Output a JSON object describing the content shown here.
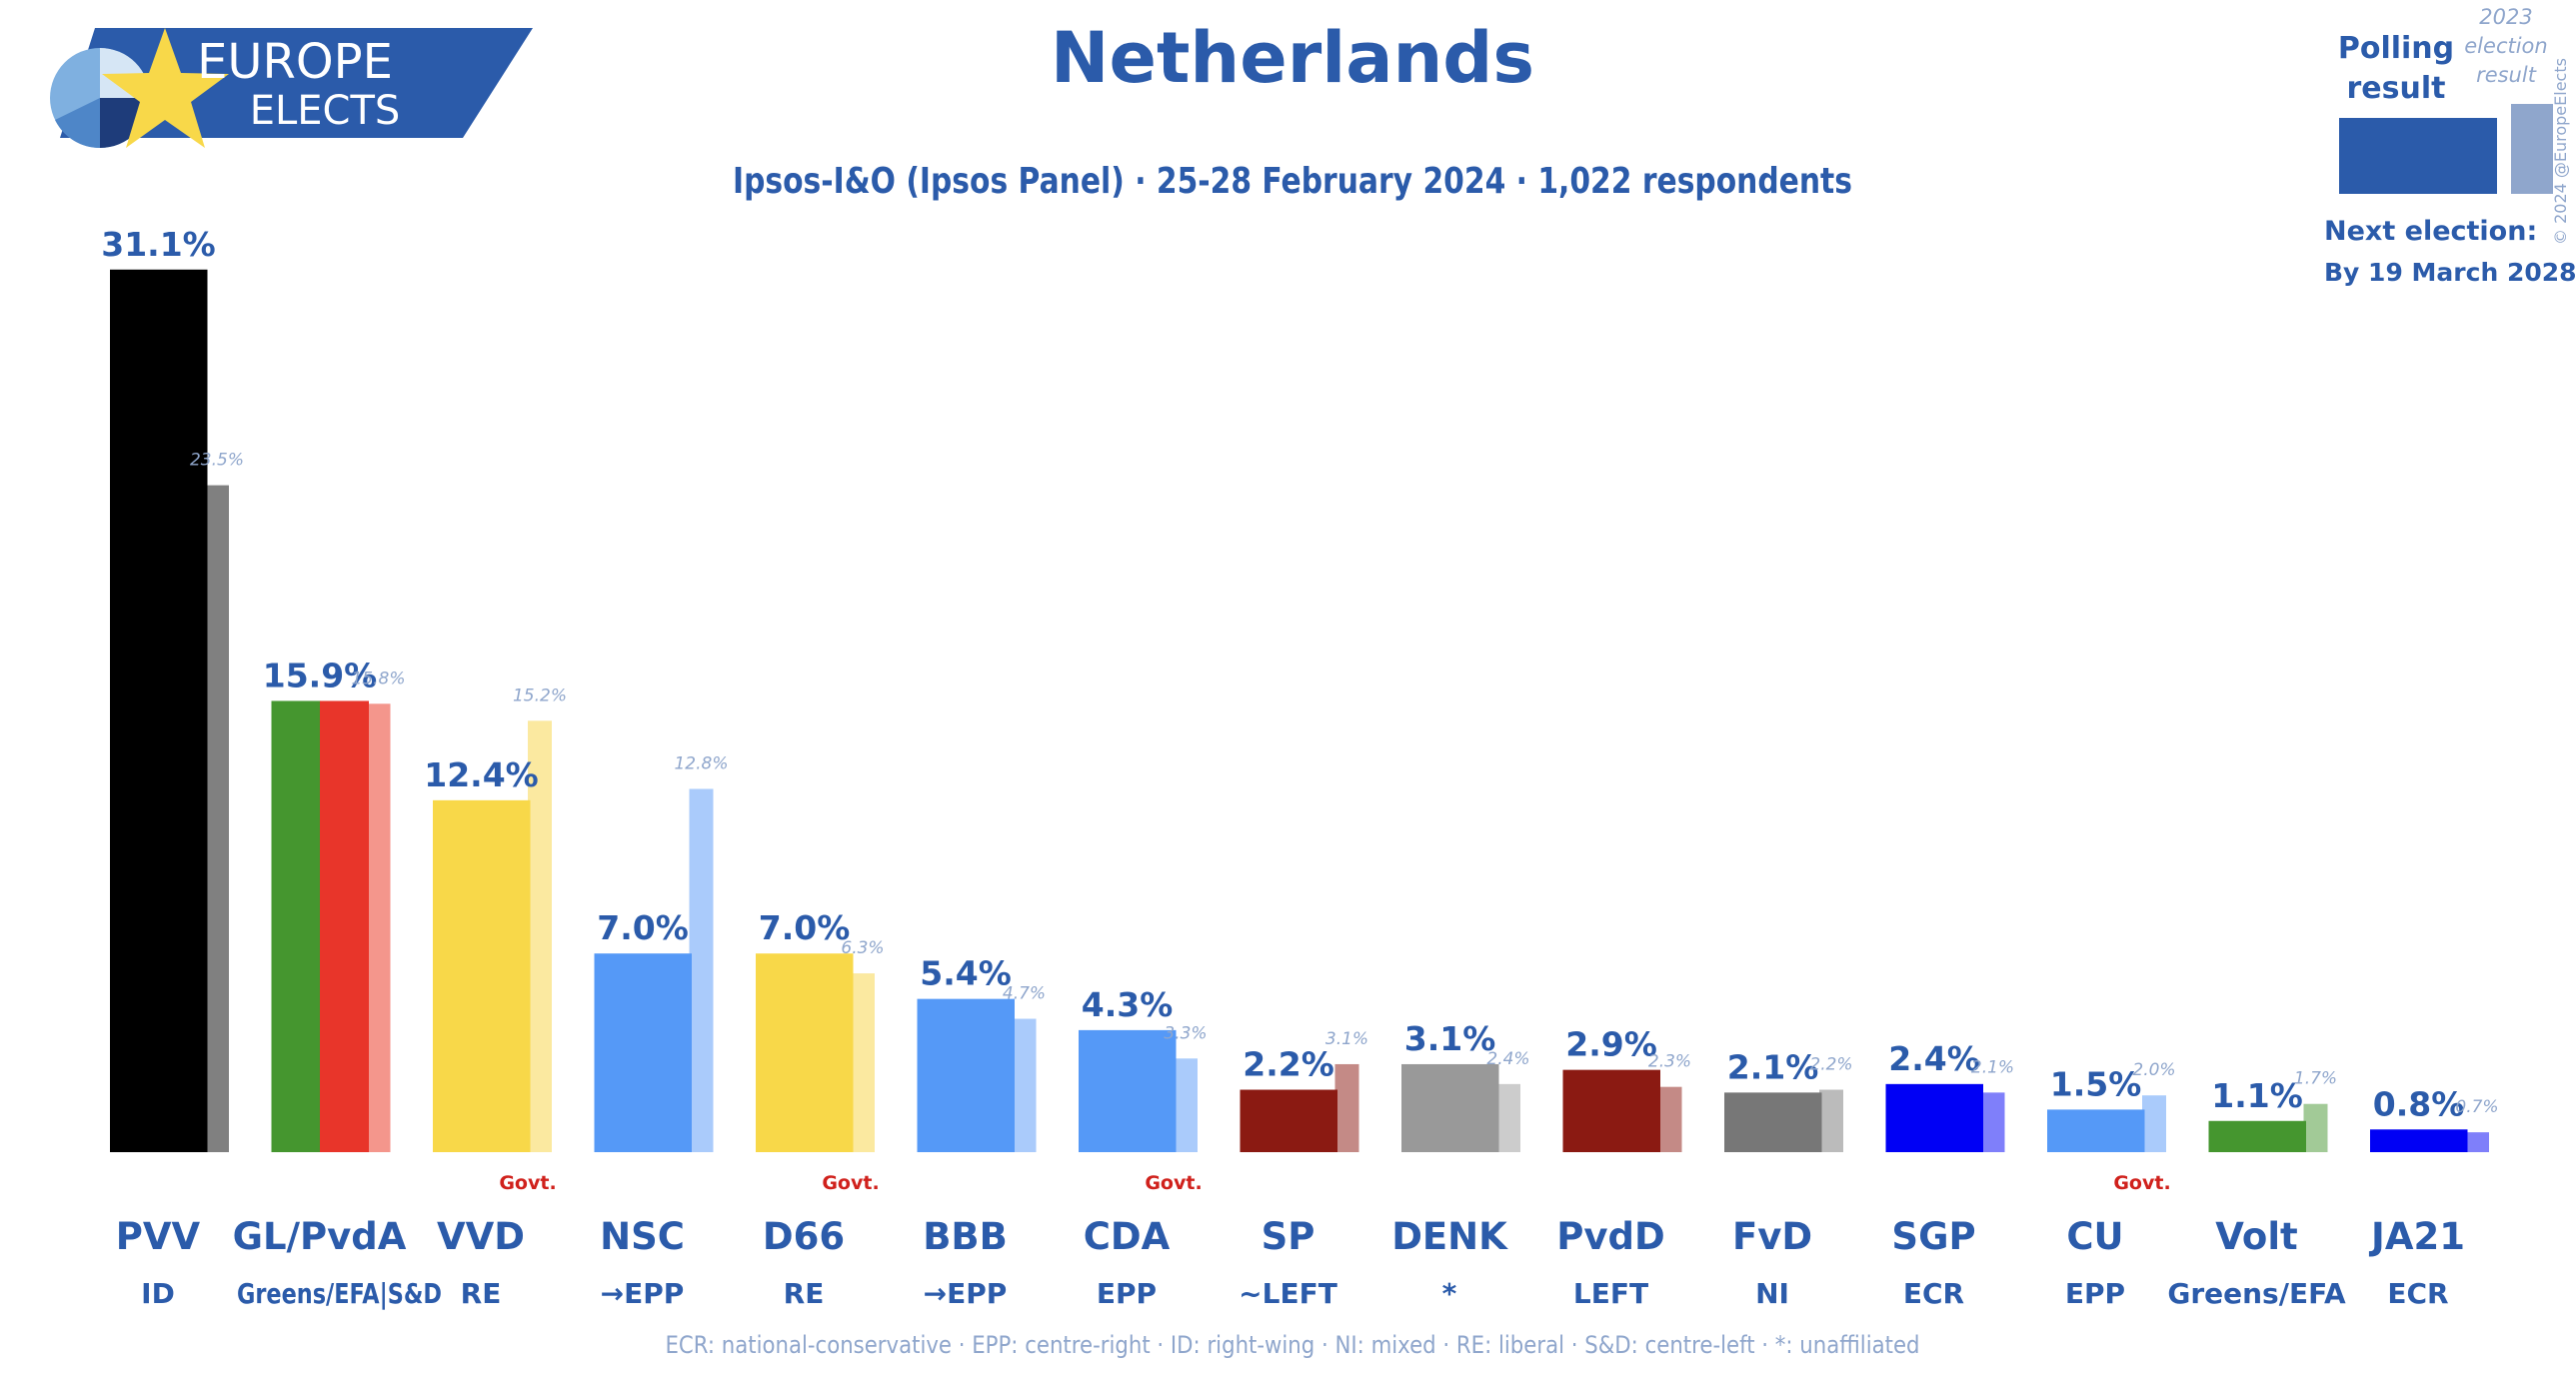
{
  "header": {
    "title": "Netherlands",
    "subtitle": "Ipsos-I&O (Ipsos Panel) · 25-28 February 2024 · 1,022 respondents",
    "logo_line1": "EUROPE",
    "logo_line2": "ELECTS"
  },
  "legend": {
    "polling_label": "Polling result",
    "election_label": "2023 election result",
    "next_election_label": "Next election:",
    "next_election_date": "By 19 March 2028",
    "copyright": "© 2024 @EuropeElects"
  },
  "footnote": "ECR: national-conservative · EPP: centre-right · ID: right-wing · NI: mixed · RE: liberal · S&D: centre-left · *: unaffiliated",
  "govt_label": "Govt.",
  "colors": {
    "title": "#2B5BAA",
    "previous_label": "#8FA6CC",
    "govt": "#D0211C",
    "footnote": "#8FA6CC"
  },
  "chart_data": {
    "type": "bar",
    "ylim": [
      0,
      33
    ],
    "value_suffix": "%",
    "parties": [
      {
        "name": "PVV",
        "group": "ID",
        "value": 31.1,
        "previous": 23.5,
        "colors": [
          "#000000"
        ],
        "prev_color": "#808080",
        "govt": false
      },
      {
        "name": "GL/PvdA",
        "group": "Greens/EFA|S&D",
        "value": 15.9,
        "previous": 15.8,
        "colors": [
          "#45962F",
          "#E8352A"
        ],
        "prev_color": "#F4968C",
        "govt": false
      },
      {
        "name": "VVD",
        "group": "RE",
        "value": 12.4,
        "previous": 15.2,
        "colors": [
          "#F8D849"
        ],
        "prev_color": "#FBE9A0",
        "govt": true
      },
      {
        "name": "NSC",
        "group": "→EPP",
        "value": 7.0,
        "previous": 12.8,
        "colors": [
          "#5599F7"
        ],
        "prev_color": "#AACBFB",
        "govt": false
      },
      {
        "name": "D66",
        "group": "RE",
        "value": 7.0,
        "previous": 6.3,
        "colors": [
          "#F8D849"
        ],
        "prev_color": "#FBE9A0",
        "govt": true
      },
      {
        "name": "BBB",
        "group": "→EPP",
        "value": 5.4,
        "previous": 4.7,
        "colors": [
          "#5599F7"
        ],
        "prev_color": "#AACBFB",
        "govt": false
      },
      {
        "name": "CDA",
        "group": "EPP",
        "value": 4.3,
        "previous": 3.3,
        "colors": [
          "#5599F7"
        ],
        "prev_color": "#AACBFB",
        "govt": true
      },
      {
        "name": "SP",
        "group": "~LEFT",
        "value": 2.2,
        "previous": 3.1,
        "colors": [
          "#8B1A12"
        ],
        "prev_color": "#C48A86",
        "govt": false
      },
      {
        "name": "DENK",
        "group": "*",
        "value": 3.1,
        "previous": 2.4,
        "colors": [
          "#999999"
        ],
        "prev_color": "#CCCCCC",
        "govt": false
      },
      {
        "name": "PvdD",
        "group": "LEFT",
        "value": 2.9,
        "previous": 2.3,
        "colors": [
          "#8B1A12"
        ],
        "prev_color": "#C48A86",
        "govt": false
      },
      {
        "name": "FvD",
        "group": "NI",
        "value": 2.1,
        "previous": 2.2,
        "colors": [
          "#777777"
        ],
        "prev_color": "#BBBBBB",
        "govt": false
      },
      {
        "name": "SGP",
        "group": "ECR",
        "value": 2.4,
        "previous": 2.1,
        "colors": [
          "#0000F5"
        ],
        "prev_color": "#7F7FFA",
        "govt": false
      },
      {
        "name": "CU",
        "group": "EPP",
        "value": 1.5,
        "previous": 2.0,
        "colors": [
          "#5599F7"
        ],
        "prev_color": "#AACBFB",
        "govt": true
      },
      {
        "name": "Volt",
        "group": "Greens/EFA",
        "value": 1.1,
        "previous": 1.7,
        "colors": [
          "#45962F"
        ],
        "prev_color": "#A2CA97",
        "govt": false
      },
      {
        "name": "JA21",
        "group": "ECR",
        "value": 0.8,
        "previous": 0.7,
        "colors": [
          "#0000F5"
        ],
        "prev_color": "#7F7FFA",
        "govt": false
      }
    ]
  }
}
